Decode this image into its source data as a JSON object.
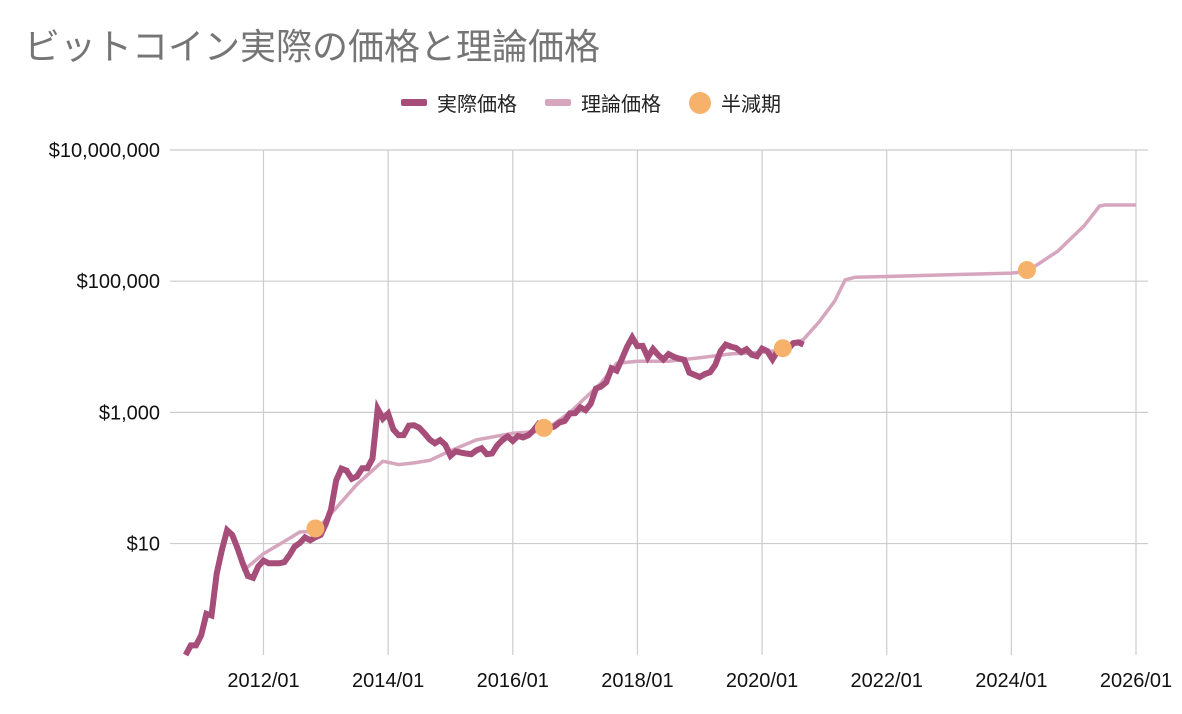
{
  "title": "ビットコイン実際の価格と理論価格",
  "legend": {
    "actual": "実際価格",
    "theory": "理論価格",
    "halving": "半減期"
  },
  "colors": {
    "actual": "#a64d79",
    "theory": "#d5a6bd",
    "halving": "#f6b26b",
    "grid": "#cccccc"
  },
  "chart_data": {
    "type": "line",
    "title": "ビットコイン実際の価格と理論価格",
    "y_scale": "log",
    "ylim": [
      0.2,
      10000000
    ],
    "xlim": [
      "2010/07",
      "2026/01"
    ],
    "grid": true,
    "legend_position": "top",
    "y_ticks": [
      {
        "value": 10,
        "label": "$10"
      },
      {
        "value": 1000,
        "label": "$1,000"
      },
      {
        "value": 100000,
        "label": "$100,000"
      },
      {
        "value": 10000000,
        "label": "$10,000,000"
      }
    ],
    "x_ticks": [
      "2012/01",
      "2014/01",
      "2016/01",
      "2018/01",
      "2020/01",
      "2022/01",
      "2024/01",
      "2026/01"
    ],
    "series": [
      {
        "name": "実際価格",
        "points": [
          [
            "2010/10",
            0.12
          ],
          [
            "2010/11",
            0.28
          ],
          [
            "2010/12",
            0.28
          ],
          [
            "2011/01",
            0.4
          ],
          [
            "2011/02",
            0.85
          ],
          [
            "2011/03",
            0.8
          ],
          [
            "2011/04",
            3.5
          ],
          [
            "2011/05",
            8
          ],
          [
            "2011/06",
            16
          ],
          [
            "2011/07",
            13.5
          ],
          [
            "2011/08",
            8.5
          ],
          [
            "2011/09",
            5
          ],
          [
            "2011/10",
            3.2
          ],
          [
            "2011/11",
            3
          ],
          [
            "2011/12",
            4.5
          ],
          [
            "2012/01",
            5.5
          ],
          [
            "2012/02",
            5
          ],
          [
            "2012/03",
            5
          ],
          [
            "2012/04",
            5
          ],
          [
            "2012/05",
            5.2
          ],
          [
            "2012/06",
            6.7
          ],
          [
            "2012/07",
            9
          ],
          [
            "2012/08",
            10.2
          ],
          [
            "2012/09",
            12.4
          ],
          [
            "2012/10",
            11.2
          ],
          [
            "2012/11",
            12.5
          ],
          [
            "2012/12",
            13.5
          ],
          [
            "2013/01",
            20
          ],
          [
            "2013/02",
            33
          ],
          [
            "2013/03",
            92
          ],
          [
            "2013/04",
            139
          ],
          [
            "2013/05",
            129
          ],
          [
            "2013/06",
            97
          ],
          [
            "2013/07",
            106
          ],
          [
            "2013/08",
            141
          ],
          [
            "2013/09",
            141
          ],
          [
            "2013/10",
            198
          ],
          [
            "2013/11",
            1129
          ],
          [
            "2013/12",
            805
          ],
          [
            "2014/01",
            953
          ],
          [
            "2014/02",
            550
          ],
          [
            "2014/03",
            450
          ],
          [
            "2014/04",
            450
          ],
          [
            "2014/05",
            629
          ],
          [
            "2014/06",
            635
          ],
          [
            "2014/07",
            582
          ],
          [
            "2014/08",
            478
          ],
          [
            "2014/09",
            386
          ],
          [
            "2014/10",
            338
          ],
          [
            "2014/11",
            378
          ],
          [
            "2014/12",
            320
          ],
          [
            "2015/01",
            218
          ],
          [
            "2015/02",
            254
          ],
          [
            "2015/03",
            244
          ],
          [
            "2015/04",
            236
          ],
          [
            "2015/05",
            230
          ],
          [
            "2015/06",
            263
          ],
          [
            "2015/07",
            284
          ],
          [
            "2015/08",
            230
          ],
          [
            "2015/09",
            236
          ],
          [
            "2015/10",
            314
          ],
          [
            "2015/11",
            378
          ],
          [
            "2015/12",
            430
          ],
          [
            "2016/01",
            368
          ],
          [
            "2016/02",
            437
          ],
          [
            "2016/03",
            416
          ],
          [
            "2016/04",
            448
          ],
          [
            "2016/05",
            531
          ],
          [
            "2016/06",
            673
          ],
          [
            "2016/07",
            624
          ],
          [
            "2016/08",
            573
          ],
          [
            "2016/09",
            609
          ],
          [
            "2016/10",
            700
          ],
          [
            "2016/11",
            742
          ],
          [
            "2016/12",
            963
          ],
          [
            "2017/01",
            970
          ],
          [
            "2017/02",
            1190
          ],
          [
            "2017/03",
            1080
          ],
          [
            "2017/04",
            1350
          ],
          [
            "2017/05",
            2300
          ],
          [
            "2017/06",
            2480
          ],
          [
            "2017/07",
            2880
          ],
          [
            "2017/08",
            4700
          ],
          [
            "2017/09",
            4340
          ],
          [
            "2017/10",
            6470
          ],
          [
            "2017/11",
            9950
          ],
          [
            "2017/12",
            13860
          ],
          [
            "2018/01",
            10220
          ],
          [
            "2018/02",
            10330
          ],
          [
            "2018/03",
            6920
          ],
          [
            "2018/04",
            9240
          ],
          [
            "2018/05",
            7490
          ],
          [
            "2018/06",
            6400
          ],
          [
            "2018/07",
            7730
          ],
          [
            "2018/08",
            7030
          ],
          [
            "2018/09",
            6610
          ],
          [
            "2018/10",
            6340
          ],
          [
            "2018/11",
            4020
          ],
          [
            "2018/12",
            3740
          ],
          [
            "2019/01",
            3460
          ],
          [
            "2019/02",
            3850
          ],
          [
            "2019/03",
            4100
          ],
          [
            "2019/04",
            5320
          ],
          [
            "2019/05",
            8570
          ],
          [
            "2019/06",
            10800
          ],
          [
            "2019/07",
            10080
          ],
          [
            "2019/08",
            9590
          ],
          [
            "2019/09",
            8290
          ],
          [
            "2019/10",
            9200
          ],
          [
            "2019/11",
            7570
          ],
          [
            "2019/12",
            7190
          ],
          [
            "2020/01",
            9350
          ],
          [
            "2020/02",
            8600
          ],
          [
            "2020/03",
            6440
          ],
          [
            "2020/04",
            8660
          ],
          [
            "2020/05",
            9460
          ],
          [
            "2020/06",
            9140
          ],
          [
            "2020/07",
            11350
          ],
          [
            "2020/08",
            11660
          ],
          [
            "2020/09",
            10780
          ]
        ]
      },
      {
        "name": "理論価格",
        "points": [
          [
            "2011/09",
            3.8
          ],
          [
            "2012/01",
            7
          ],
          [
            "2012/06",
            12
          ],
          [
            "2012/08",
            15
          ],
          [
            "2012/11",
            15.5
          ],
          [
            "2013/03",
            35
          ],
          [
            "2013/07",
            80
          ],
          [
            "2013/12",
            180
          ],
          [
            "2014/03",
            160
          ],
          [
            "2014/06",
            170
          ],
          [
            "2014/09",
            185
          ],
          [
            "2015/01",
            260
          ],
          [
            "2015/06",
            380
          ],
          [
            "2016/01",
            480
          ],
          [
            "2016/07",
            520
          ],
          [
            "2016/12",
            1000
          ],
          [
            "2017/06",
            2800
          ],
          [
            "2017/09",
            5600
          ],
          [
            "2018/01",
            6000
          ],
          [
            "2018/07",
            6000
          ],
          [
            "2019/01",
            6800
          ],
          [
            "2019/07",
            7800
          ],
          [
            "2020/01",
            8200
          ],
          [
            "2020/05",
            9000
          ],
          [
            "2020/09",
            13000
          ],
          [
            "2020/12",
            24000
          ],
          [
            "2021/03",
            50000
          ],
          [
            "2021/05",
            105000
          ],
          [
            "2021/07",
            115000
          ],
          [
            "2022/01",
            118000
          ],
          [
            "2023/01",
            125000
          ],
          [
            "2024/01",
            133000
          ],
          [
            "2024/04",
            140000
          ],
          [
            "2024/10",
            290000
          ],
          [
            "2025/03",
            700000
          ],
          [
            "2025/06",
            1400000
          ],
          [
            "2025/07",
            1450000
          ],
          [
            "2026/01",
            1450000
          ]
        ]
      },
      {
        "name": "半減期",
        "points": [
          [
            "2012/11",
            17
          ],
          [
            "2016/07",
            580
          ],
          [
            "2020/05",
            9500
          ],
          [
            "2024/04",
            148000
          ]
        ]
      }
    ]
  }
}
